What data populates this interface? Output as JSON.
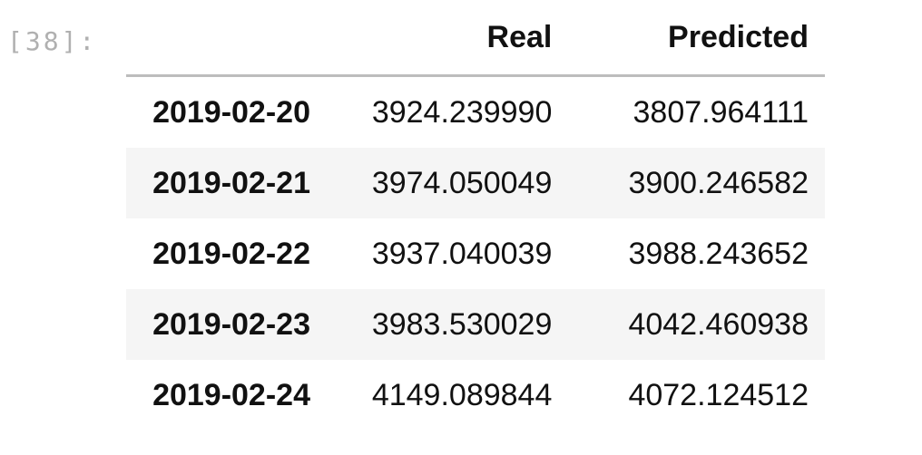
{
  "cell": {
    "prompt": "[38]:"
  },
  "dataframe": {
    "columns": [
      "",
      "Real",
      "Predicted"
    ],
    "rows": [
      {
        "index": "2019-02-20",
        "real": "3924.239990",
        "predicted": "3807.964111"
      },
      {
        "index": "2019-02-21",
        "real": "3974.050049",
        "predicted": "3900.246582"
      },
      {
        "index": "2019-02-22",
        "real": "3937.040039",
        "predicted": "3988.243652"
      },
      {
        "index": "2019-02-23",
        "real": "3983.530029",
        "predicted": "4042.460938"
      },
      {
        "index": "2019-02-24",
        "real": "4149.089844",
        "predicted": "4072.124512"
      }
    ]
  }
}
